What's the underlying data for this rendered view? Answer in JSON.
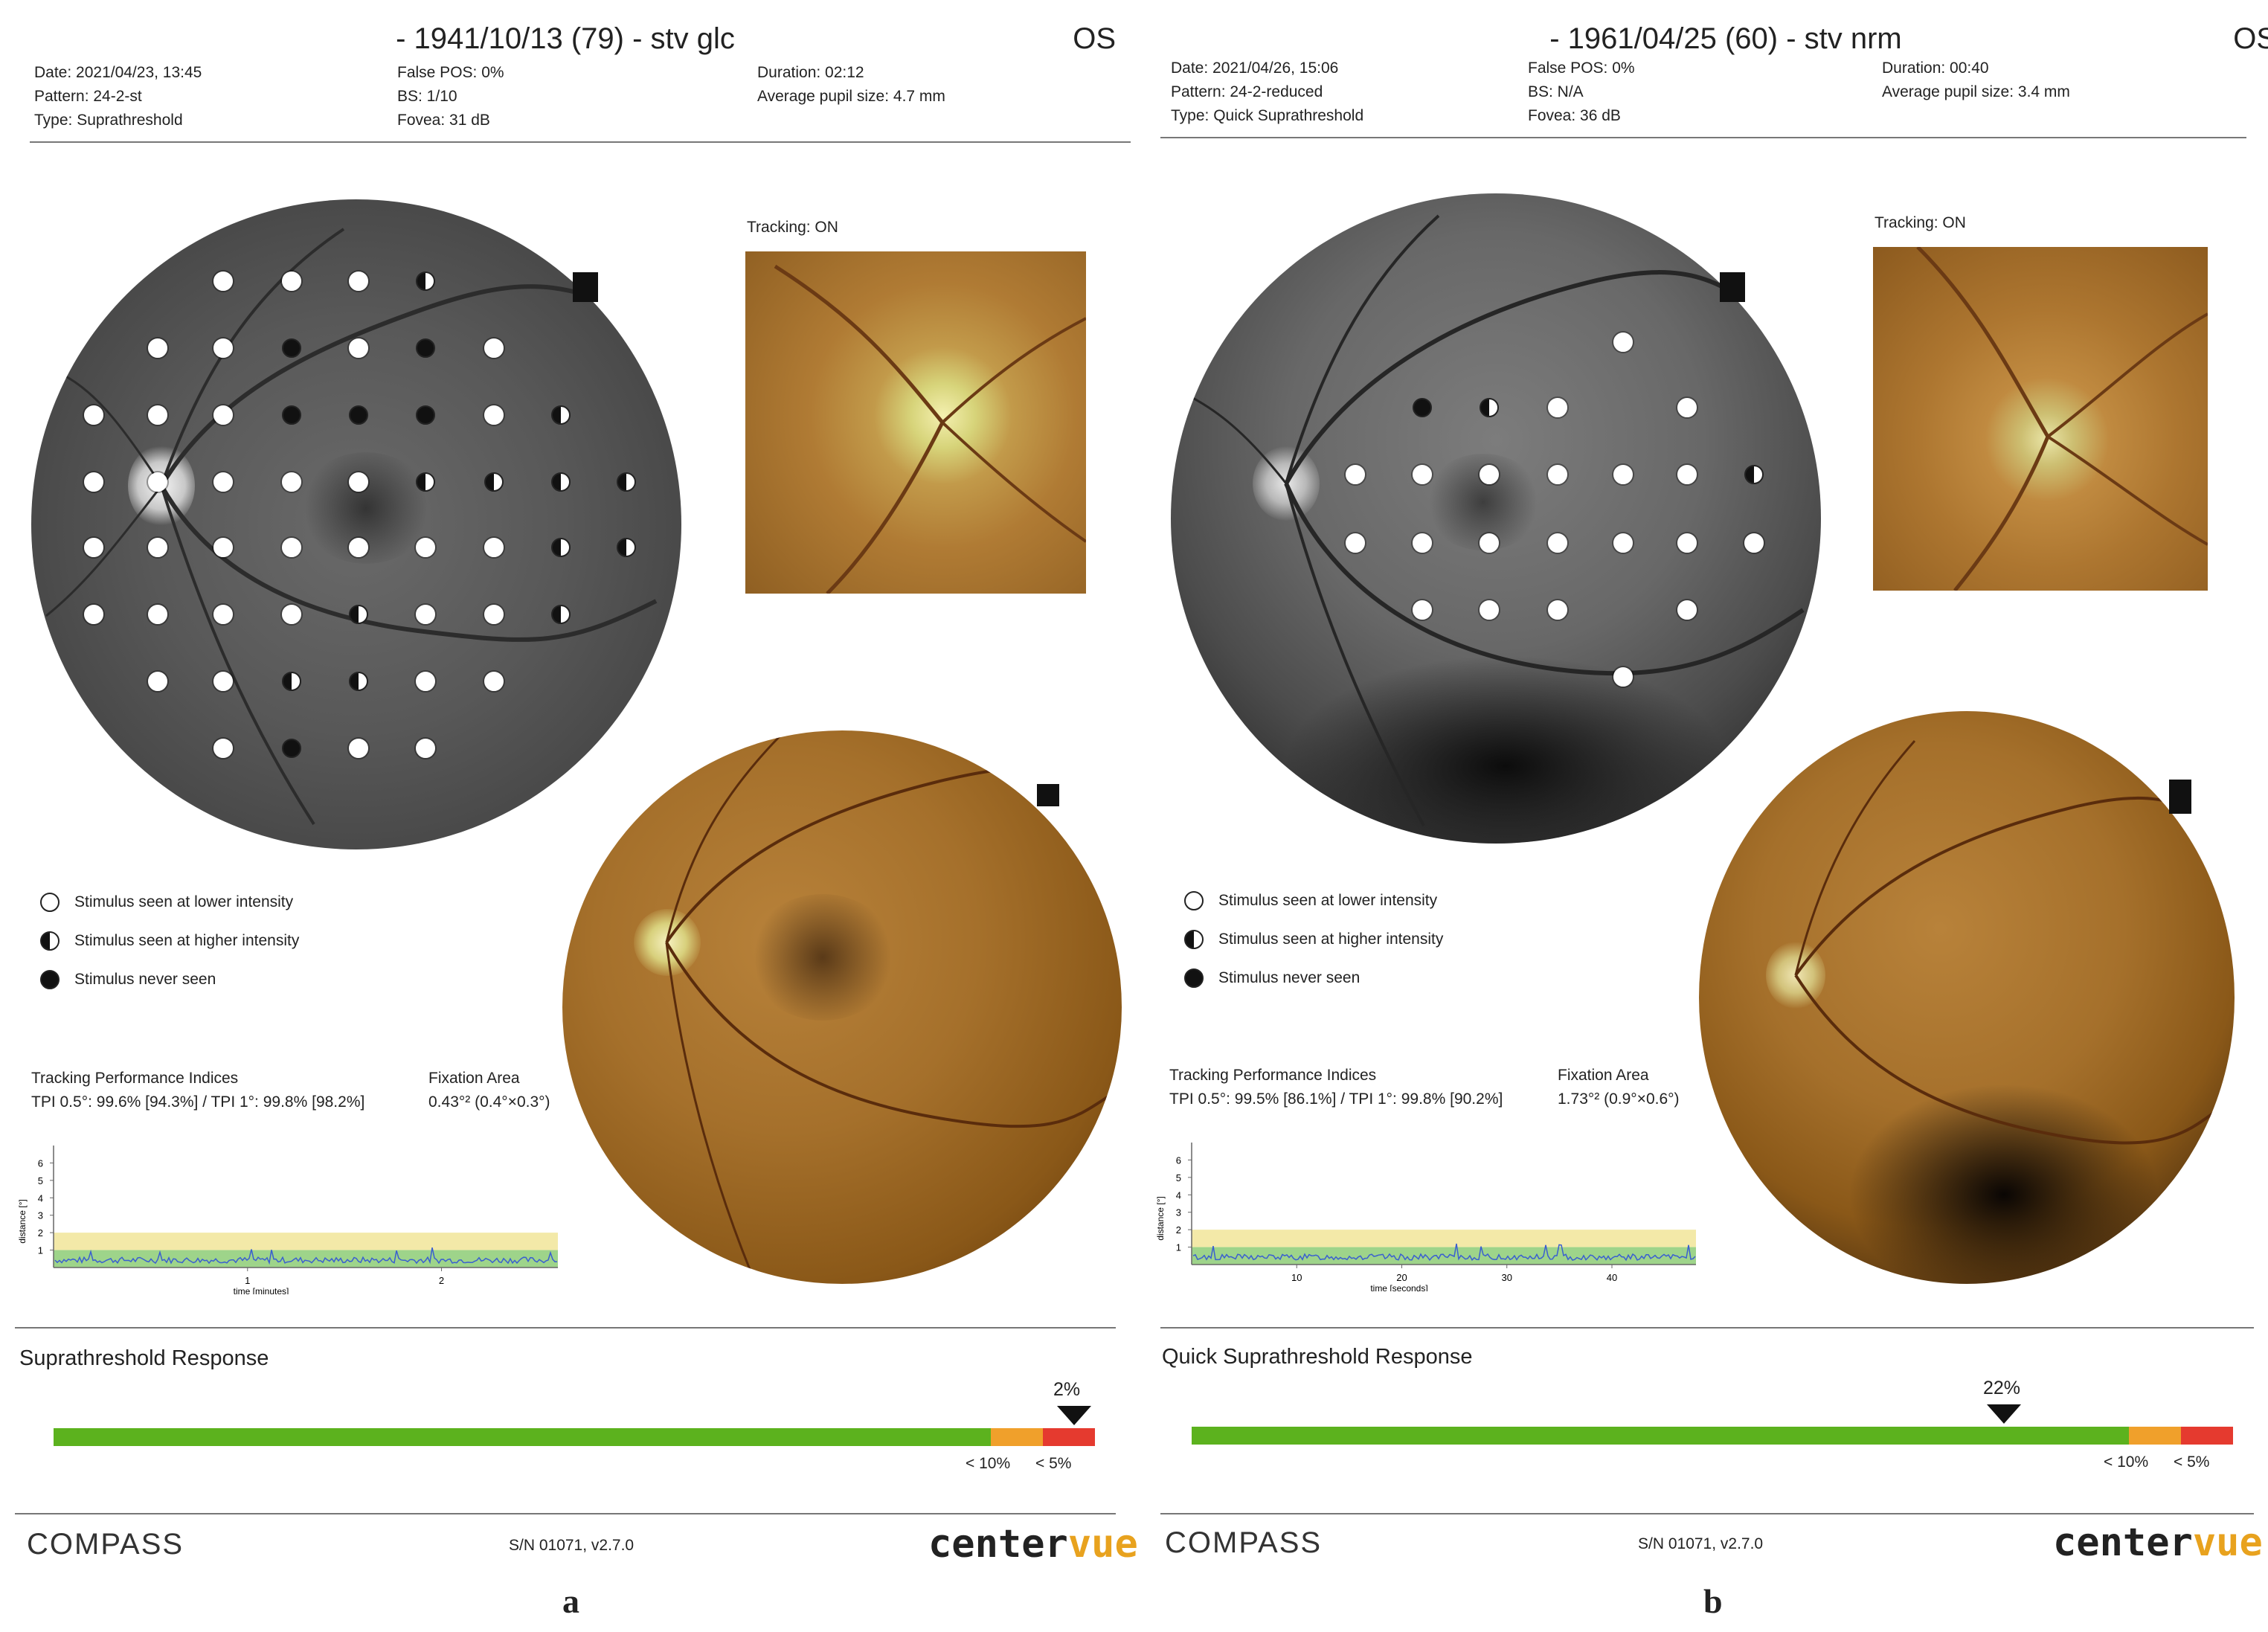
{
  "panels": [
    {
      "title": "- 1941/10/13 (79) - stv glc",
      "eye": "OS",
      "info_col1": [
        "Date: 2021/04/23, 13:45",
        "Pattern: 24-2-st",
        "Type: Suprathreshold"
      ],
      "info_col2": [
        "False POS: 0%",
        "BS: 1/10",
        "Fovea: 31 dB"
      ],
      "info_col3": [
        "Duration: 02:12",
        "Average pupil size: 4.7 mm"
      ],
      "tracking": "Tracking: ON",
      "legend": [
        "Stimulus seen at lower intensity",
        "Stimulus seen at higher intensity",
        "Stimulus never seen"
      ],
      "tpi_title": "Tracking Performance Indices",
      "tpi_text": "TPI 0.5°: 99.6% [94.3%] / TPI 1°: 99.8% [98.2%]",
      "fix_title": "Fixation Area",
      "fix_text": "0.43°² (0.4°×0.3°)",
      "chart_y_label": "distance [°]",
      "chart_x_label": "time [minutes]",
      "chart_y_ticks": [
        "6",
        "5",
        "4",
        "3",
        "2",
        "1"
      ],
      "chart_x_ticks": [
        "1",
        "2"
      ],
      "response_title": "Suprathreshold Response",
      "response_value": "2%",
      "threshold_labels": [
        "< 10%",
        "< 5%"
      ],
      "footer_left": "COMPASS",
      "footer_sn": "S/N 01071, v2.7.0",
      "footer_logo": "centervue",
      "letter": "a"
    },
    {
      "title": "- 1961/04/25 (60) - stv nrm",
      "eye": "OS",
      "info_col1": [
        "Date: 2021/04/26, 15:06",
        "Pattern: 24-2-reduced",
        "Type: Quick Suprathreshold"
      ],
      "info_col2": [
        "False POS: 0%",
        "BS: N/A",
        "Fovea: 36 dB"
      ],
      "info_col3": [
        "Duration: 00:40",
        "Average pupil size: 3.4 mm"
      ],
      "tracking": "Tracking: ON",
      "legend": [
        "Stimulus seen at lower intensity",
        "Stimulus seen at higher intensity",
        "Stimulus never seen"
      ],
      "tpi_title": "Tracking Performance Indices",
      "tpi_text": "TPI 0.5°: 99.5% [86.1%] / TPI 1°: 99.8% [90.2%]",
      "fix_title": "Fixation Area",
      "fix_text": "1.73°² (0.9°×0.6°)",
      "chart_y_label": "distance [°]",
      "chart_x_label": "time [seconds]",
      "chart_y_ticks": [
        "6",
        "5",
        "4",
        "3",
        "2",
        "1"
      ],
      "chart_x_ticks": [
        "10",
        "20",
        "30",
        "40"
      ],
      "response_title": "Quick Suprathreshold Response",
      "response_value": "22%",
      "threshold_labels": [
        "< 10%",
        "< 5%"
      ],
      "footer_left": "COMPASS",
      "footer_sn": "S/N 01071, v2.7.0",
      "footer_logo": "centervue",
      "letter": "b"
    }
  ],
  "stimuli": {
    "a": [
      [
        "l",
        300,
        378
      ],
      [
        "l",
        392,
        378
      ],
      [
        "l",
        482,
        378
      ],
      [
        "h",
        572,
        378
      ],
      [
        "l",
        212,
        468
      ],
      [
        "l",
        300,
        468
      ],
      [
        "n",
        392,
        468
      ],
      [
        "l",
        482,
        468
      ],
      [
        "n",
        572,
        468
      ],
      [
        "l",
        664,
        468
      ],
      [
        "l",
        126,
        558
      ],
      [
        "l",
        212,
        558
      ],
      [
        "l",
        300,
        558
      ],
      [
        "n",
        392,
        558
      ],
      [
        "n",
        482,
        558
      ],
      [
        "n",
        572,
        558
      ],
      [
        "l",
        664,
        558
      ],
      [
        "h",
        754,
        558
      ],
      [
        "l",
        126,
        648
      ],
      [
        "l",
        212,
        648
      ],
      [
        "l",
        300,
        648
      ],
      [
        "l",
        392,
        648
      ],
      [
        "l",
        482,
        648
      ],
      [
        "h",
        572,
        648
      ],
      [
        "h",
        664,
        648
      ],
      [
        "h",
        754,
        648
      ],
      [
        "h",
        842,
        648
      ],
      [
        "l",
        126,
        736
      ],
      [
        "l",
        212,
        736
      ],
      [
        "l",
        300,
        736
      ],
      [
        "l",
        392,
        736
      ],
      [
        "l",
        482,
        736
      ],
      [
        "l",
        572,
        736
      ],
      [
        "l",
        664,
        736
      ],
      [
        "h",
        754,
        736
      ],
      [
        "h",
        842,
        736
      ],
      [
        "l",
        126,
        826
      ],
      [
        "l",
        212,
        826
      ],
      [
        "l",
        300,
        826
      ],
      [
        "l",
        392,
        826
      ],
      [
        "h",
        482,
        826
      ],
      [
        "l",
        572,
        826
      ],
      [
        "l",
        664,
        826
      ],
      [
        "h",
        754,
        826
      ],
      [
        "l",
        212,
        916
      ],
      [
        "l",
        300,
        916
      ],
      [
        "h",
        392,
        916
      ],
      [
        "h",
        482,
        916
      ],
      [
        "l",
        572,
        916
      ],
      [
        "l",
        664,
        916
      ],
      [
        "l",
        300,
        1006
      ],
      [
        "n",
        392,
        1006
      ],
      [
        "l",
        482,
        1006
      ],
      [
        "l",
        572,
        1006
      ]
    ],
    "b": [
      [
        "l",
        622,
        460
      ],
      [
        "n",
        352,
        548
      ],
      [
        "h",
        442,
        548
      ],
      [
        "l",
        534,
        548
      ],
      [
        "l",
        708,
        548
      ],
      [
        "l",
        262,
        638
      ],
      [
        "l",
        352,
        638
      ],
      [
        "l",
        442,
        638
      ],
      [
        "l",
        534,
        638
      ],
      [
        "l",
        622,
        638
      ],
      [
        "l",
        708,
        638
      ],
      [
        "h",
        798,
        638
      ],
      [
        "l",
        262,
        730
      ],
      [
        "l",
        352,
        730
      ],
      [
        "l",
        442,
        730
      ],
      [
        "l",
        534,
        730
      ],
      [
        "l",
        622,
        730
      ],
      [
        "l",
        708,
        730
      ],
      [
        "l",
        798,
        730
      ],
      [
        "l",
        352,
        820
      ],
      [
        "l",
        442,
        820
      ],
      [
        "l",
        534,
        820
      ],
      [
        "l",
        708,
        820
      ],
      [
        "l",
        622,
        910
      ]
    ]
  },
  "chart_data": [
    {
      "type": "line",
      "title": "",
      "xlabel": "time [minutes]",
      "ylabel": "distance [°]",
      "ylim": [
        0,
        7
      ],
      "x_ticks": [
        1,
        2
      ],
      "bands": {
        "green": [
          0,
          1
        ],
        "yellow": [
          1,
          2
        ]
      }
    },
    {
      "type": "line",
      "title": "",
      "xlabel": "time [seconds]",
      "ylabel": "distance [°]",
      "ylim": [
        0,
        7
      ],
      "x_ticks": [
        10,
        20,
        30,
        40
      ],
      "bands": {
        "green": [
          0,
          1
        ],
        "yellow": [
          1,
          2
        ]
      }
    }
  ],
  "response_bars": [
    {
      "value_percent": 2,
      "marker_fraction": 0.98
    },
    {
      "value_percent": 22,
      "marker_fraction": 0.78
    }
  ],
  "colors": {
    "green": "#5cb21e",
    "orange": "#f0a02b",
    "red": "#e53a2f",
    "band_yellow": "#f3e9a8",
    "band_green": "#9ed48a",
    "trace": "#3a5fd0"
  }
}
